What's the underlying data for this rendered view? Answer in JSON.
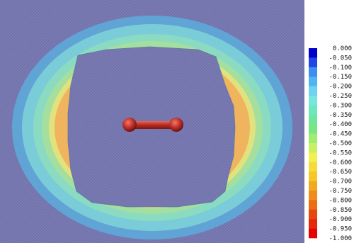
{
  "chart_data": {
    "type": "heatmap",
    "background_color": "#7070aa",
    "colorbar": {
      "position": "right",
      "ticks": [
        "0.000",
        "-0.050",
        "-0.100",
        "-0.150",
        "-0.200",
        "-0.250",
        "-0.300",
        "-0.350",
        "-0.400",
        "-0.450",
        "-0.500",
        "-0.550",
        "-0.600",
        "-0.650",
        "-0.700",
        "-0.750",
        "-0.800",
        "-0.850",
        "-0.900",
        "-0.950",
        "-1.000"
      ],
      "range": [
        -1.0,
        0.0
      ],
      "colors": [
        "#0000c8",
        "#1e46e6",
        "#3c8ef0",
        "#50b4f0",
        "#6ed2f0",
        "#78e6dc",
        "#6ee6be",
        "#6ee6a0",
        "#78e682",
        "#a0ec6e",
        "#c8f064",
        "#f0f050",
        "#f5dc3c",
        "#f5c828",
        "#f0aa1e",
        "#f08c19",
        "#eb6e14",
        "#e6460f",
        "#e6280a",
        "#e60000"
      ]
    },
    "molecule": {
      "atoms": 2,
      "atom_color": "#c0302a",
      "bond_color": "#a82820"
    },
    "contour_levels": [
      {
        "value": -0.15,
        "color": "#5ea8d8"
      },
      {
        "value": -0.25,
        "color": "#7ccfd8"
      },
      {
        "value": -0.4,
        "color": "#8cdcc0"
      },
      {
        "value": -0.55,
        "color": "#a6e09c"
      },
      {
        "value": -0.65,
        "color": "#e6e27a"
      },
      {
        "value": -0.8,
        "color": "#f0b05a"
      }
    ],
    "inner_region_color": "#707090"
  }
}
